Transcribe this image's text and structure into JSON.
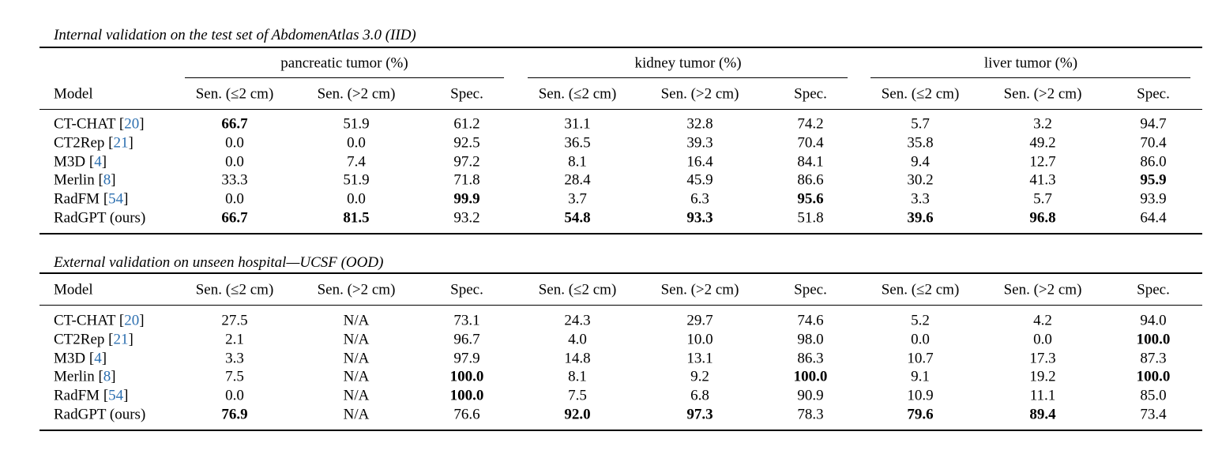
{
  "top": {
    "caption": "Internal validation on the test set of AbdomenAtlas 3.0 (IID)",
    "groups": [
      "pancreatic tumor (%)",
      "kidney tumor (%)",
      "liver tumor (%)"
    ],
    "col_model": "Model",
    "subcols": [
      "Sen. (≤2 cm)",
      "Sen. (>2 cm)",
      "Spec."
    ],
    "rows": [
      {
        "name": "CT-CHAT",
        "cite": "20",
        "values": [
          "66.7",
          "51.9",
          "61.2",
          "31.1",
          "32.8",
          "74.2",
          "5.7",
          "3.2",
          "94.7"
        ],
        "bold": [
          0
        ]
      },
      {
        "name": "CT2Rep",
        "cite": "21",
        "values": [
          "0.0",
          "0.0",
          "92.5",
          "36.5",
          "39.3",
          "70.4",
          "35.8",
          "49.2",
          "70.4"
        ],
        "bold": []
      },
      {
        "name": "M3D",
        "cite": "4",
        "values": [
          "0.0",
          "7.4",
          "97.2",
          "8.1",
          "16.4",
          "84.1",
          "9.4",
          "12.7",
          "86.0"
        ],
        "bold": []
      },
      {
        "name": "Merlin",
        "cite": "8",
        "values": [
          "33.3",
          "51.9",
          "71.8",
          "28.4",
          "45.9",
          "86.6",
          "30.2",
          "41.3",
          "95.9"
        ],
        "bold": [
          8
        ]
      },
      {
        "name": "RadFM",
        "cite": "54",
        "values": [
          "0.0",
          "0.0",
          "99.9",
          "3.7",
          "6.3",
          "95.6",
          "3.3",
          "5.7",
          "93.9"
        ],
        "bold": [
          2,
          5
        ]
      },
      {
        "name": "RadGPT (ours)",
        "cite": "",
        "values": [
          "66.7",
          "81.5",
          "93.2",
          "54.8",
          "93.3",
          "51.8",
          "39.6",
          "96.8",
          "64.4"
        ],
        "bold": [
          0,
          1,
          3,
          4,
          6,
          7
        ]
      }
    ]
  },
  "bottom": {
    "caption": "External validation on unseen hospital—UCSF (OOD)",
    "col_model": "Model",
    "subcols": [
      "Sen. (≤2 cm)",
      "Sen. (>2 cm)",
      "Spec."
    ],
    "rows": [
      {
        "name": "CT-CHAT",
        "cite": "20",
        "values": [
          "27.5",
          "N/A",
          "73.1",
          "24.3",
          "29.7",
          "74.6",
          "5.2",
          "4.2",
          "94.0"
        ],
        "bold": []
      },
      {
        "name": "CT2Rep",
        "cite": "21",
        "values": [
          "2.1",
          "N/A",
          "96.7",
          "4.0",
          "10.0",
          "98.0",
          "0.0",
          "0.0",
          "100.0"
        ],
        "bold": [
          8
        ]
      },
      {
        "name": "M3D",
        "cite": "4",
        "values": [
          "3.3",
          "N/A",
          "97.9",
          "14.8",
          "13.1",
          "86.3",
          "10.7",
          "17.3",
          "87.3"
        ],
        "bold": []
      },
      {
        "name": "Merlin",
        "cite": "8",
        "values": [
          "7.5",
          "N/A",
          "100.0",
          "8.1",
          "9.2",
          "100.0",
          "9.1",
          "19.2",
          "100.0"
        ],
        "bold": [
          2,
          5,
          8
        ]
      },
      {
        "name": "RadFM",
        "cite": "54",
        "values": [
          "0.0",
          "N/A",
          "100.0",
          "7.5",
          "6.8",
          "90.9",
          "10.9",
          "11.1",
          "85.0"
        ],
        "bold": [
          2
        ]
      },
      {
        "name": "RadGPT (ours)",
        "cite": "",
        "values": [
          "76.9",
          "N/A",
          "76.6",
          "92.0",
          "97.3",
          "78.3",
          "79.6",
          "89.4",
          "73.4"
        ],
        "bold": [
          0,
          3,
          4,
          6,
          7
        ]
      }
    ]
  }
}
